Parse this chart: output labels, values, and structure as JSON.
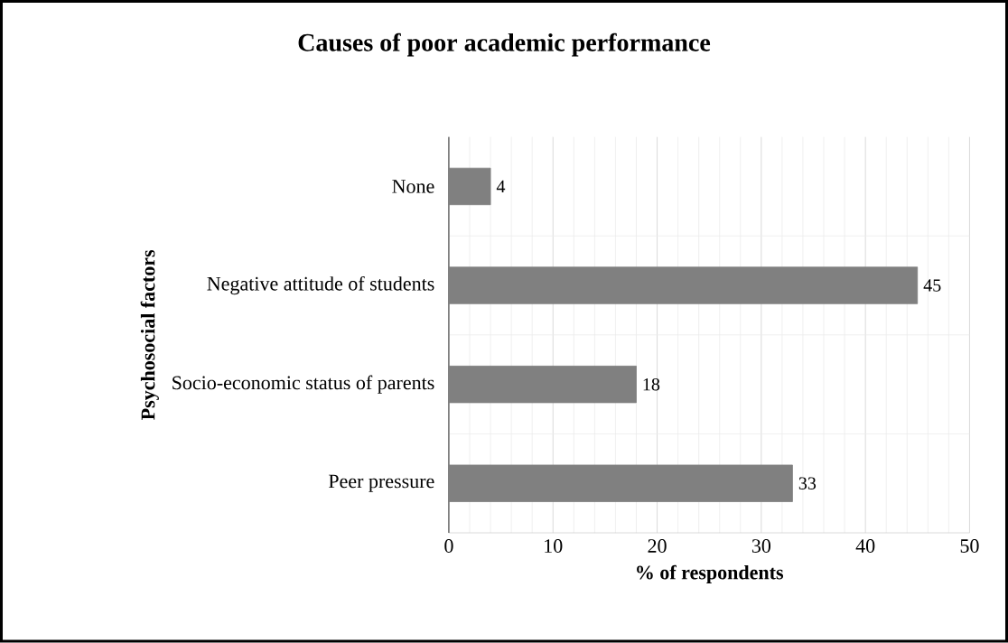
{
  "chart_data": {
    "type": "bar",
    "orientation": "horizontal",
    "title": "Causes of poor academic performance",
    "xlabel": "% of respondents",
    "ylabel": "Psychosocial factors",
    "categories": [
      "None",
      "Negative attitude of students",
      "Socio-economic status of parents",
      "Peer pressure"
    ],
    "values": [
      4,
      45,
      18,
      33
    ],
    "color": "#808080",
    "data_labels": true,
    "grid": true,
    "xlim": [
      0,
      50
    ],
    "xticks": [
      0,
      10,
      20,
      30,
      40,
      50
    ]
  }
}
